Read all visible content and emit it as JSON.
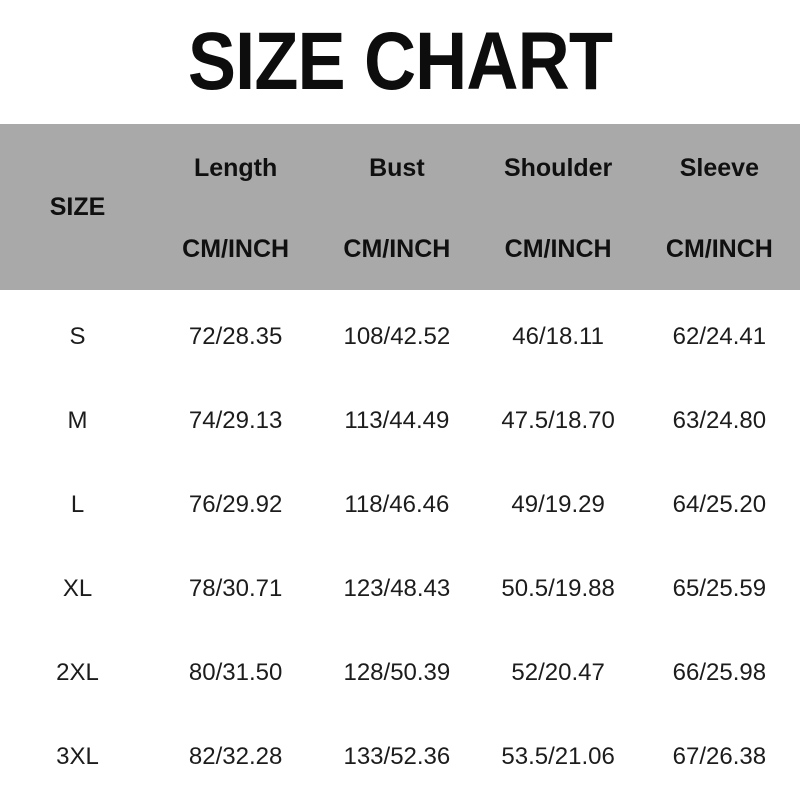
{
  "title": "SIZE CHART",
  "colors": {
    "header_bg": "#a9a9a9",
    "title_text": "#0d0d0d",
    "body_text": "#1c1c1c",
    "background": "#ffffff"
  },
  "table": {
    "size_header": "SIZE",
    "unit_label": "CM/INCH",
    "columns": [
      "Length",
      "Bust",
      "Shoulder",
      "Sleeve"
    ],
    "rows": [
      {
        "size": "S",
        "length": "72/28.35",
        "bust": "108/42.52",
        "shoulder": "46/18.11",
        "sleeve": "62/24.41"
      },
      {
        "size": "M",
        "length": "74/29.13",
        "bust": "113/44.49",
        "shoulder": "47.5/18.70",
        "sleeve": "63/24.80"
      },
      {
        "size": "L",
        "length": "76/29.92",
        "bust": "118/46.46",
        "shoulder": "49/19.29",
        "sleeve": "64/25.20"
      },
      {
        "size": "XL",
        "length": "78/30.71",
        "bust": "123/48.43",
        "shoulder": "50.5/19.88",
        "sleeve": "65/25.59"
      },
      {
        "size": "2XL",
        "length": "80/31.50",
        "bust": "128/50.39",
        "shoulder": "52/20.47",
        "sleeve": "66/25.98"
      },
      {
        "size": "3XL",
        "length": "82/32.28",
        "bust": "133/52.36",
        "shoulder": "53.5/21.06",
        "sleeve": "67/26.38"
      }
    ]
  },
  "chart_data": {
    "type": "table",
    "title": "SIZE CHART",
    "unit": "CM/INCH",
    "columns": [
      "SIZE",
      "Length",
      "Bust",
      "Shoulder",
      "Sleeve"
    ],
    "rows": [
      [
        "S",
        "72/28.35",
        "108/42.52",
        "46/18.11",
        "62/24.41"
      ],
      [
        "M",
        "74/29.13",
        "113/44.49",
        "47.5/18.70",
        "63/24.80"
      ],
      [
        "L",
        "76/29.92",
        "118/46.46",
        "49/19.29",
        "64/25.20"
      ],
      [
        "XL",
        "78/30.71",
        "123/48.43",
        "50.5/19.88",
        "65/25.59"
      ],
      [
        "2XL",
        "80/31.50",
        "128/50.39",
        "52/20.47",
        "66/25.98"
      ],
      [
        "3XL",
        "82/32.28",
        "133/52.36",
        "53.5/21.06",
        "67/26.38"
      ]
    ]
  }
}
